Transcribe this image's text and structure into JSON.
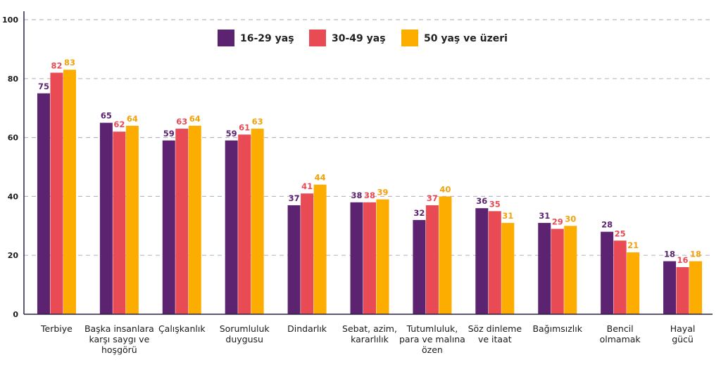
{
  "chart_data": {
    "type": "bar",
    "title": "",
    "xlabel": "",
    "ylabel": "",
    "ylim": [
      0,
      100
    ],
    "yticks": [
      "0",
      "20",
      "40",
      "60",
      "80",
      "100"
    ],
    "grid": true,
    "legend_position": "top-center",
    "categories": [
      [
        "Terbiye"
      ],
      [
        "Başka insanlara",
        "karşı saygı ve",
        "hoşgörü"
      ],
      [
        "Çalışkanlık"
      ],
      [
        "Sorumluluk",
        "duygusu"
      ],
      [
        "Dindarlık"
      ],
      [
        "Sebat, azim,",
        "kararlılık"
      ],
      [
        "Tutumluluk,",
        "para ve malına",
        "özen"
      ],
      [
        "Söz dinleme",
        "ve itaat"
      ],
      [
        "Bağımsızlık"
      ],
      [
        "Bencil",
        "olmamak"
      ],
      [
        "Hayal",
        "gücü"
      ]
    ],
    "series": [
      {
        "name": "16-29 yaş",
        "color": "#5c2370",
        "values": [
          75,
          65,
          59,
          59,
          37,
          38,
          32,
          36,
          31,
          28,
          18
        ]
      },
      {
        "name": "30-49 yaş",
        "color": "#e94b55",
        "values": [
          82,
          62,
          63,
          61,
          41,
          38,
          37,
          35,
          29,
          25,
          16
        ]
      },
      {
        "name": "50 yaş ve üzeri",
        "color": "#fcad00",
        "values": [
          83,
          64,
          64,
          63,
          44,
          39,
          40,
          31,
          30,
          21,
          18
        ]
      }
    ],
    "label_colors": [
      "#5c2370",
      "#e94b55",
      "#f3a20a"
    ]
  }
}
